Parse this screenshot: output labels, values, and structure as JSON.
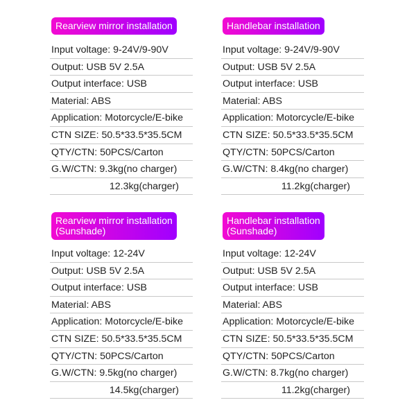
{
  "panels": [
    {
      "title": "Rearview mirror installation",
      "rows": [
        "Input voltage: 9-24V/9-90V",
        "Output: USB 5V 2.5A",
        "Output interface: USB",
        "Material: ABS",
        "Application: Motorcycle/E-bike",
        "CTN SIZE: 50.5*33.5*35.5CM",
        "QTY/CTN: 50PCS/Carton",
        "G.W/CTN: 9.3kg(no charger)"
      ],
      "extra": "12.3kg(charger)"
    },
    {
      "title": "Handlebar installation",
      "rows": [
        "Input voltage: 9-24V/9-90V",
        "Output: USB 5V 2.5A",
        "Output interface: USB",
        "Material: ABS",
        "Application: Motorcycle/E-bike",
        "CTN SIZE: 50.5*33.5*35.5CM",
        "QTY/CTN: 50PCS/Carton",
        "G.W/CTN: 8.4kg(no charger)"
      ],
      "extra": "11.2kg(charger)"
    },
    {
      "title": "Rearview mirror installation",
      "title2": "(Sunshade)",
      "rows": [
        "Input voltage: 12-24V",
        "Output: USB 5V 2.5A",
        "Output interface: USB",
        "Material: ABS",
        "Application: Motorcycle/E-bike",
        "CTN SIZE: 50.5*33.5*35.5CM",
        "QTY/CTN: 50PCS/Carton",
        "G.W/CTN: 9.5kg(no charger)"
      ],
      "extra": "14.5kg(charger)"
    },
    {
      "title": "Handlebar installation",
      "title2": "(Sunshade)",
      "rows": [
        "Input voltage: 12-24V",
        "Output: USB 5V 2.5A",
        "Output interface: USB",
        "Material: ABS",
        "Application: Motorcycle/E-bike",
        "CTN SIZE: 50.5*33.5*35.5CM",
        "QTY/CTN: 50PCS/Carton",
        "G.W/CTN: 8.7kg(no charger)"
      ],
      "extra": "11.2kg(charger)"
    }
  ]
}
